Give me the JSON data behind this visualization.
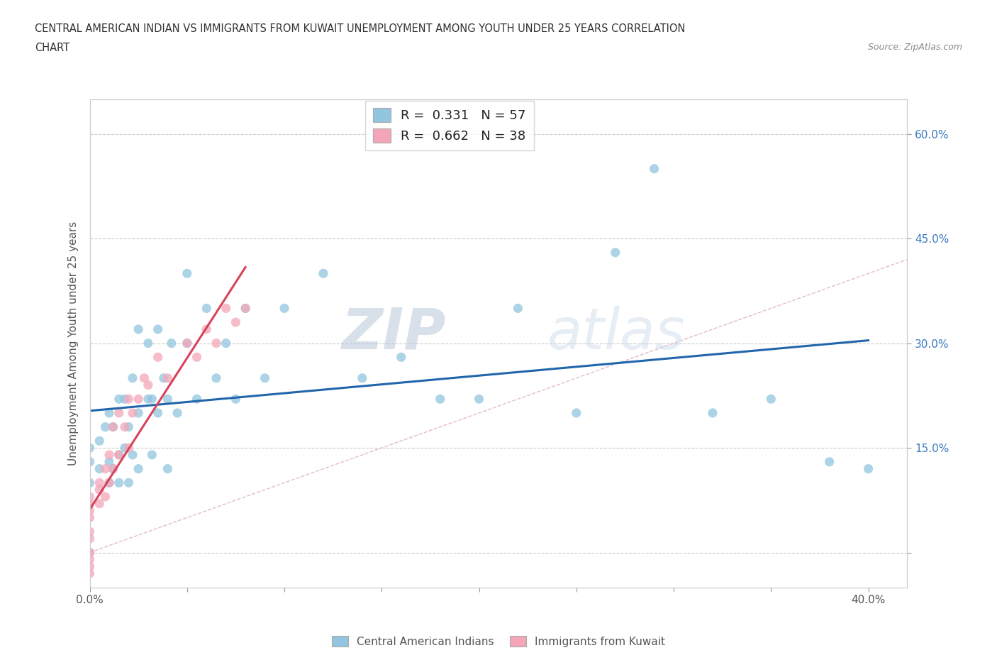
{
  "title_line1": "CENTRAL AMERICAN INDIAN VS IMMIGRANTS FROM KUWAIT UNEMPLOYMENT AMONG YOUTH UNDER 25 YEARS CORRELATION",
  "title_line2": "CHART",
  "source": "Source: ZipAtlas.com",
  "ylabel": "Unemployment Among Youth under 25 years",
  "xlim": [
    0.0,
    0.42
  ],
  "ylim": [
    -0.05,
    0.65
  ],
  "x_ticks": [
    0.0,
    0.05,
    0.1,
    0.15,
    0.2,
    0.25,
    0.3,
    0.35,
    0.4
  ],
  "y_ticks": [
    0.0,
    0.15,
    0.3,
    0.45,
    0.6
  ],
  "legend_r1": "0.331",
  "legend_n1": "57",
  "legend_r2": "0.662",
  "legend_n2": "38",
  "blue_color": "#92c5de",
  "pink_color": "#f4a6b8",
  "blue_line_color": "#2166ac",
  "pink_line_color": "#d6435a",
  "watermark_zip": "ZIP",
  "watermark_atlas": "atlas",
  "blue_scatter_x": [
    0.0,
    0.0,
    0.0,
    0.005,
    0.005,
    0.008,
    0.01,
    0.01,
    0.01,
    0.012,
    0.012,
    0.015,
    0.015,
    0.015,
    0.018,
    0.018,
    0.02,
    0.02,
    0.022,
    0.022,
    0.025,
    0.025,
    0.025,
    0.03,
    0.03,
    0.032,
    0.032,
    0.035,
    0.035,
    0.038,
    0.04,
    0.04,
    0.042,
    0.045,
    0.05,
    0.05,
    0.055,
    0.06,
    0.065,
    0.07,
    0.075,
    0.08,
    0.09,
    0.1,
    0.12,
    0.14,
    0.16,
    0.18,
    0.2,
    0.22,
    0.25,
    0.27,
    0.29,
    0.32,
    0.35,
    0.38,
    0.4
  ],
  "blue_scatter_y": [
    0.1,
    0.13,
    0.15,
    0.12,
    0.16,
    0.18,
    0.1,
    0.13,
    0.2,
    0.12,
    0.18,
    0.1,
    0.14,
    0.22,
    0.15,
    0.22,
    0.1,
    0.18,
    0.14,
    0.25,
    0.12,
    0.2,
    0.32,
    0.22,
    0.3,
    0.14,
    0.22,
    0.2,
    0.32,
    0.25,
    0.12,
    0.22,
    0.3,
    0.2,
    0.3,
    0.4,
    0.22,
    0.35,
    0.25,
    0.3,
    0.22,
    0.35,
    0.25,
    0.35,
    0.4,
    0.25,
    0.28,
    0.22,
    0.22,
    0.35,
    0.2,
    0.43,
    0.55,
    0.2,
    0.22,
    0.13,
    0.12
  ],
  "pink_scatter_x": [
    0.0,
    0.0,
    0.0,
    0.0,
    0.0,
    0.0,
    0.0,
    0.0,
    0.0,
    0.0,
    0.0,
    0.005,
    0.005,
    0.005,
    0.008,
    0.008,
    0.01,
    0.01,
    0.012,
    0.012,
    0.015,
    0.015,
    0.018,
    0.02,
    0.02,
    0.022,
    0.025,
    0.028,
    0.03,
    0.035,
    0.04,
    0.05,
    0.055,
    0.06,
    0.065,
    0.07,
    0.075,
    0.08
  ],
  "pink_scatter_y": [
    -0.03,
    -0.02,
    -0.01,
    0.0,
    0.0,
    0.02,
    0.03,
    0.05,
    0.06,
    0.07,
    0.08,
    0.07,
    0.09,
    0.1,
    0.08,
    0.12,
    0.1,
    0.14,
    0.12,
    0.18,
    0.14,
    0.2,
    0.18,
    0.15,
    0.22,
    0.2,
    0.22,
    0.25,
    0.24,
    0.28,
    0.25,
    0.3,
    0.28,
    0.32,
    0.3,
    0.35,
    0.33,
    0.35
  ]
}
